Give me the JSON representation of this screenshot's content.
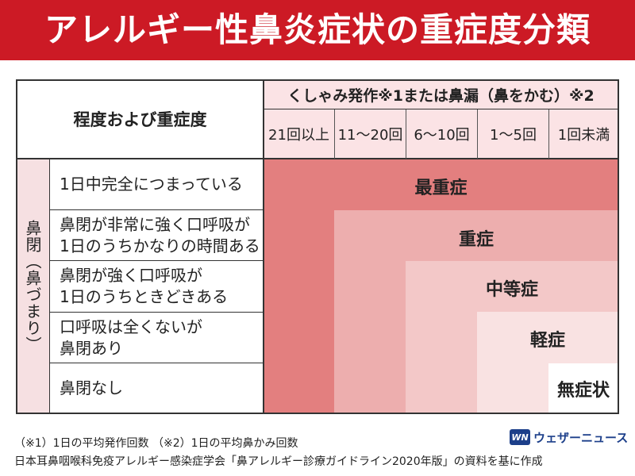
{
  "title": "アレルギー性鼻炎症状の重症度分類",
  "table": {
    "corner_label": "程度および重症度",
    "column_group_label": "くしゃみ発作※1または鼻漏（鼻をかむ）※2",
    "columns": [
      "21回以上",
      "11〜20回",
      "6〜10回",
      "1〜5回",
      "1回未満"
    ],
    "row_group_label": "鼻閉（鼻づまり）",
    "rows": [
      "1日中完全につまっている",
      "鼻閉が非常に強く口呼吸が\n1日のうちかなりの時間ある",
      "鼻閉が強く口呼吸が\n1日のうちときどきある",
      "口呼吸は全くないが\n鼻閉あり",
      "鼻閉なし"
    ],
    "severity_levels": [
      {
        "label": "最重症",
        "color": "#e37f7f"
      },
      {
        "label": "重症",
        "color": "#edaeae"
      },
      {
        "label": "中等症",
        "color": "#f3c8c8"
      },
      {
        "label": "軽症",
        "color": "#f9e2e2"
      },
      {
        "label": "無症状",
        "color": "#ffffff"
      }
    ]
  },
  "footnotes": {
    "line1": "（※1）1日の平均発作回数 （※2）1日の平均鼻かみ回数",
    "line2": "日本耳鼻咽喉科免疫アレルギー感染症学会「鼻アレルギー診療ガイドライン2020年版」の資料を基に作成"
  },
  "logo": {
    "mark": "WN",
    "text": "ウェザーニュース",
    "icon": "weathernews-logo-icon"
  },
  "colors": {
    "header_bg": "#cc1a25",
    "header_band": "#fbe3e5",
    "left_band": "#f6e0e2"
  }
}
